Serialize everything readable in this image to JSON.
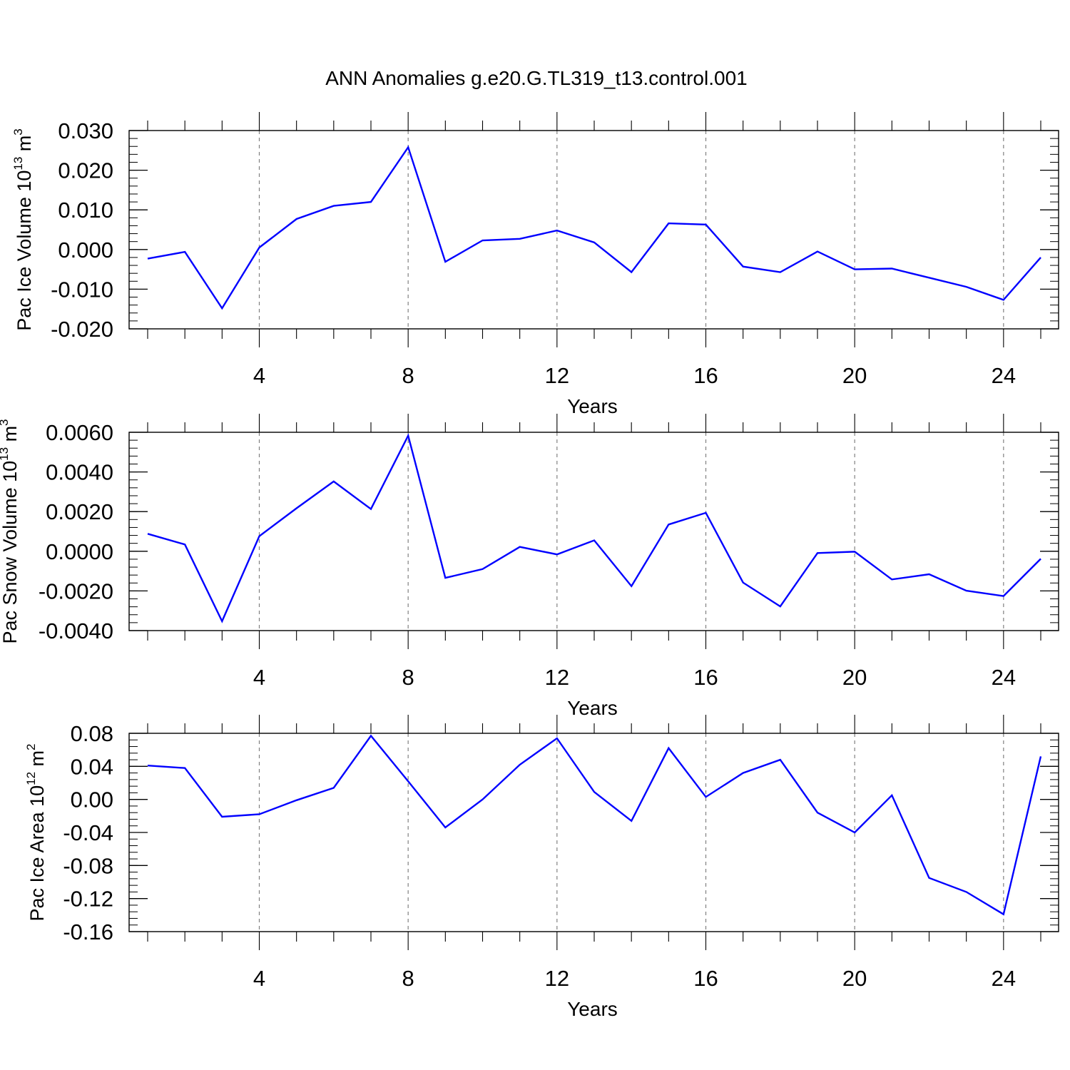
{
  "page": {
    "title": "ANN Anomalies g.e20.G.TL319_t13.control.001"
  },
  "colors": {
    "line": "#0000ff",
    "axis": "#000000",
    "grid": "#808080"
  },
  "chart_data": [
    {
      "type": "line",
      "id": "ice-volume",
      "ylabel": {
        "text": "Pac Ice Volume 10",
        "sup": "13",
        "unit": " m",
        "unit_sup": "3"
      },
      "xlabel": "Years",
      "xlim": [
        1,
        25
      ],
      "ylim": [
        -0.02,
        0.03
      ],
      "yticks": [
        "0.030",
        "0.020",
        "0.010",
        "0.000",
        "-0.010",
        "-0.020"
      ],
      "ytick_values": [
        0.03,
        0.02,
        0.01,
        0.0,
        -0.01,
        -0.02
      ],
      "xticks": [
        4,
        8,
        12,
        16,
        20,
        24
      ],
      "xtick_labels": [
        "4",
        "8",
        "12",
        "16",
        "20",
        "24"
      ],
      "grid_x": [
        4,
        8,
        12,
        16,
        20,
        24
      ],
      "series": [
        {
          "name": "Pac Ice Volume",
          "x": [
            1,
            2,
            3,
            4,
            5,
            6,
            7,
            8,
            9,
            10,
            11,
            12,
            13,
            14,
            15,
            16,
            17,
            18,
            19,
            20,
            21,
            22,
            23,
            24,
            25
          ],
          "values": [
            -0.0023,
            -0.0006,
            -0.0148,
            0.0005,
            0.0077,
            0.011,
            0.012,
            0.0258,
            -0.0031,
            0.0023,
            0.0027,
            0.0048,
            0.0018,
            -0.0057,
            0.0066,
            0.0063,
            -0.0043,
            -0.0057,
            -0.0005,
            -0.005,
            -0.0048,
            -0.0071,
            -0.0094,
            -0.0127,
            -0.002
          ]
        }
      ]
    },
    {
      "type": "line",
      "id": "snow-volume",
      "ylabel": {
        "text": "Pac Snow Volume 10",
        "sup": "13",
        "unit": " m",
        "unit_sup": "3"
      },
      "xlabel": "Years",
      "xlim": [
        1,
        25
      ],
      "ylim": [
        -0.004,
        0.006
      ],
      "yticks": [
        "0.0060",
        "0.0040",
        "0.0020",
        "0.0000",
        "-0.0020",
        "-0.0040"
      ],
      "ytick_values": [
        0.006,
        0.004,
        0.002,
        0.0,
        -0.002,
        -0.004
      ],
      "xticks": [
        4,
        8,
        12,
        16,
        20,
        24
      ],
      "xtick_labels": [
        "4",
        "8",
        "12",
        "16",
        "20",
        "24"
      ],
      "grid_x": [
        4,
        8,
        12,
        16,
        20,
        24
      ],
      "series": [
        {
          "name": "Pac Snow Volume",
          "x": [
            1,
            2,
            3,
            4,
            5,
            6,
            7,
            8,
            9,
            10,
            11,
            12,
            13,
            14,
            15,
            16,
            17,
            18,
            19,
            20,
            21,
            22,
            23,
            24,
            25
          ],
          "values": [
            0.00088,
            0.00034,
            -0.00353,
            0.00076,
            0.00217,
            0.00352,
            0.00213,
            0.00583,
            -0.00134,
            -0.0009,
            0.00022,
            -0.00016,
            0.00055,
            -0.00176,
            0.00135,
            0.00194,
            -0.00158,
            -0.00278,
            -9e-05,
            -2e-05,
            -0.00142,
            -0.00116,
            -0.00199,
            -0.00226,
            -0.00038
          ]
        }
      ]
    },
    {
      "type": "line",
      "id": "ice-area",
      "ylabel": {
        "text": "Pac Ice Area 10",
        "sup": "12",
        "unit": " m",
        "unit_sup": "2"
      },
      "xlabel": "Years",
      "xlim": [
        1,
        25
      ],
      "ylim": [
        -0.16,
        0.08
      ],
      "yticks": [
        "0.08",
        "0.04",
        "0.00",
        "-0.04",
        "-0.08",
        "-0.12",
        "-0.16"
      ],
      "ytick_values": [
        0.08,
        0.04,
        0.0,
        -0.04,
        -0.08,
        -0.12,
        -0.16
      ],
      "xticks": [
        4,
        8,
        12,
        16,
        20,
        24
      ],
      "xtick_labels": [
        "4",
        "8",
        "12",
        "16",
        "20",
        "24"
      ],
      "grid_x": [
        4,
        8,
        12,
        16,
        20,
        24
      ],
      "series": [
        {
          "name": "Pac Ice Area",
          "x": [
            1,
            2,
            3,
            4,
            5,
            6,
            7,
            8,
            9,
            10,
            11,
            12,
            13,
            14,
            15,
            16,
            17,
            18,
            19,
            20,
            21,
            22,
            23,
            24,
            25
          ],
          "values": [
            0.041,
            0.038,
            -0.021,
            -0.018,
            -0.001,
            0.014,
            0.077,
            0.022,
            -0.034,
            0.0,
            0.042,
            0.074,
            0.009,
            -0.026,
            0.062,
            0.003,
            0.032,
            0.048,
            -0.016,
            -0.04,
            0.005,
            -0.095,
            -0.112,
            -0.139,
            0.052
          ]
        }
      ]
    }
  ]
}
